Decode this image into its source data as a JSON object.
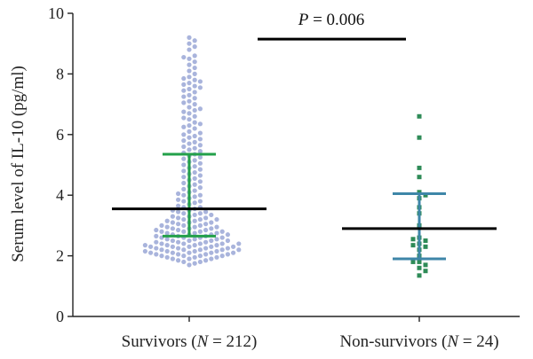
{
  "chart_data": {
    "type": "scatter",
    "subtype": "dot-plot",
    "ylabel": "Serum level of IL-10 (pg/ml)",
    "ylim": [
      0,
      10
    ],
    "yticks": [
      "0",
      "2",
      "4",
      "6",
      "8",
      "10"
    ],
    "grid": false,
    "groups": [
      {
        "key": "survivors",
        "label_pre": "Survivors (",
        "label_var": "N",
        "label_post": " = 212)",
        "n": 212,
        "point_color": "#a9b4dc",
        "point_shape": "circle",
        "range_color": "#23a04a",
        "center": 3.55,
        "upper": 5.35,
        "lower": 2.65,
        "center_color": "#000000",
        "values": [
          1.7,
          1.75,
          1.8,
          1.8,
          1.85,
          1.85,
          1.9,
          1.9,
          1.9,
          1.95,
          1.95,
          1.95,
          2.0,
          2.0,
          2.0,
          2.0,
          2.05,
          2.05,
          2.05,
          2.05,
          2.1,
          2.1,
          2.1,
          2.1,
          2.1,
          2.15,
          2.15,
          2.15,
          2.15,
          2.2,
          2.2,
          2.2,
          2.2,
          2.2,
          2.25,
          2.25,
          2.25,
          2.25,
          2.3,
          2.3,
          2.3,
          2.3,
          2.3,
          2.35,
          2.35,
          2.35,
          2.35,
          2.4,
          2.4,
          2.4,
          2.4,
          2.4,
          2.45,
          2.45,
          2.45,
          2.5,
          2.5,
          2.5,
          2.5,
          2.55,
          2.55,
          2.55,
          2.6,
          2.6,
          2.6,
          2.6,
          2.65,
          2.65,
          2.65,
          2.7,
          2.7,
          2.7,
          2.7,
          2.75,
          2.75,
          2.75,
          2.8,
          2.8,
          2.8,
          2.8,
          2.85,
          2.85,
          2.85,
          2.9,
          2.9,
          2.9,
          2.95,
          2.95,
          2.95,
          3.0,
          3.0,
          3.0,
          3.05,
          3.05,
          3.1,
          3.1,
          3.1,
          3.15,
          3.15,
          3.2,
          3.2,
          3.2,
          3.25,
          3.25,
          3.3,
          3.3,
          3.35,
          3.35,
          3.4,
          3.4,
          3.45,
          3.45,
          3.5,
          3.5,
          3.55,
          3.6,
          3.6,
          3.65,
          3.7,
          3.75,
          3.8,
          3.8,
          3.85,
          3.9,
          3.95,
          4.0,
          4.0,
          4.05,
          4.1,
          4.15,
          4.2,
          4.25,
          4.3,
          4.35,
          4.4,
          4.45,
          4.5,
          4.55,
          4.6,
          4.65,
          4.7,
          4.75,
          4.8,
          4.85,
          4.9,
          4.95,
          5.0,
          5.05,
          5.1,
          5.15,
          5.2,
          5.25,
          5.3,
          5.35,
          5.4,
          5.45,
          5.5,
          5.55,
          5.6,
          5.65,
          5.7,
          5.75,
          5.8,
          5.85,
          5.9,
          5.95,
          6.0,
          6.05,
          6.1,
          6.2,
          6.25,
          6.3,
          6.35,
          6.4,
          6.5,
          6.55,
          6.6,
          6.7,
          6.75,
          6.8,
          6.85,
          6.9,
          7.0,
          7.05,
          7.1,
          7.2,
          7.25,
          7.3,
          7.4,
          7.45,
          7.5,
          7.55,
          7.6,
          7.65,
          7.7,
          7.75,
          7.8,
          7.85,
          7.9,
          8.0,
          8.1,
          8.2,
          8.3,
          8.4,
          8.5,
          8.55,
          8.6,
          8.8,
          8.9,
          9.0,
          9.1,
          9.2
        ]
      },
      {
        "key": "non_survivors",
        "label_pre": "Non-survivors (",
        "label_var": "N",
        "label_post": " = 24)",
        "n": 24,
        "point_color": "#2e8b57",
        "point_shape": "square",
        "range_color": "#3e86a8",
        "center": 2.9,
        "upper": 4.05,
        "lower": 1.9,
        "center_color": "#000000",
        "values": [
          1.35,
          1.5,
          1.6,
          1.7,
          1.8,
          1.8,
          2.0,
          2.2,
          2.3,
          2.35,
          2.4,
          2.5,
          2.55,
          2.6,
          3.0,
          3.4,
          3.6,
          3.9,
          4.0,
          4.1,
          4.6,
          4.9,
          5.9,
          6.6
        ]
      }
    ],
    "comparison": {
      "text_var": "P",
      "text_rest": " = 0.006",
      "y_value": 9.15
    }
  }
}
